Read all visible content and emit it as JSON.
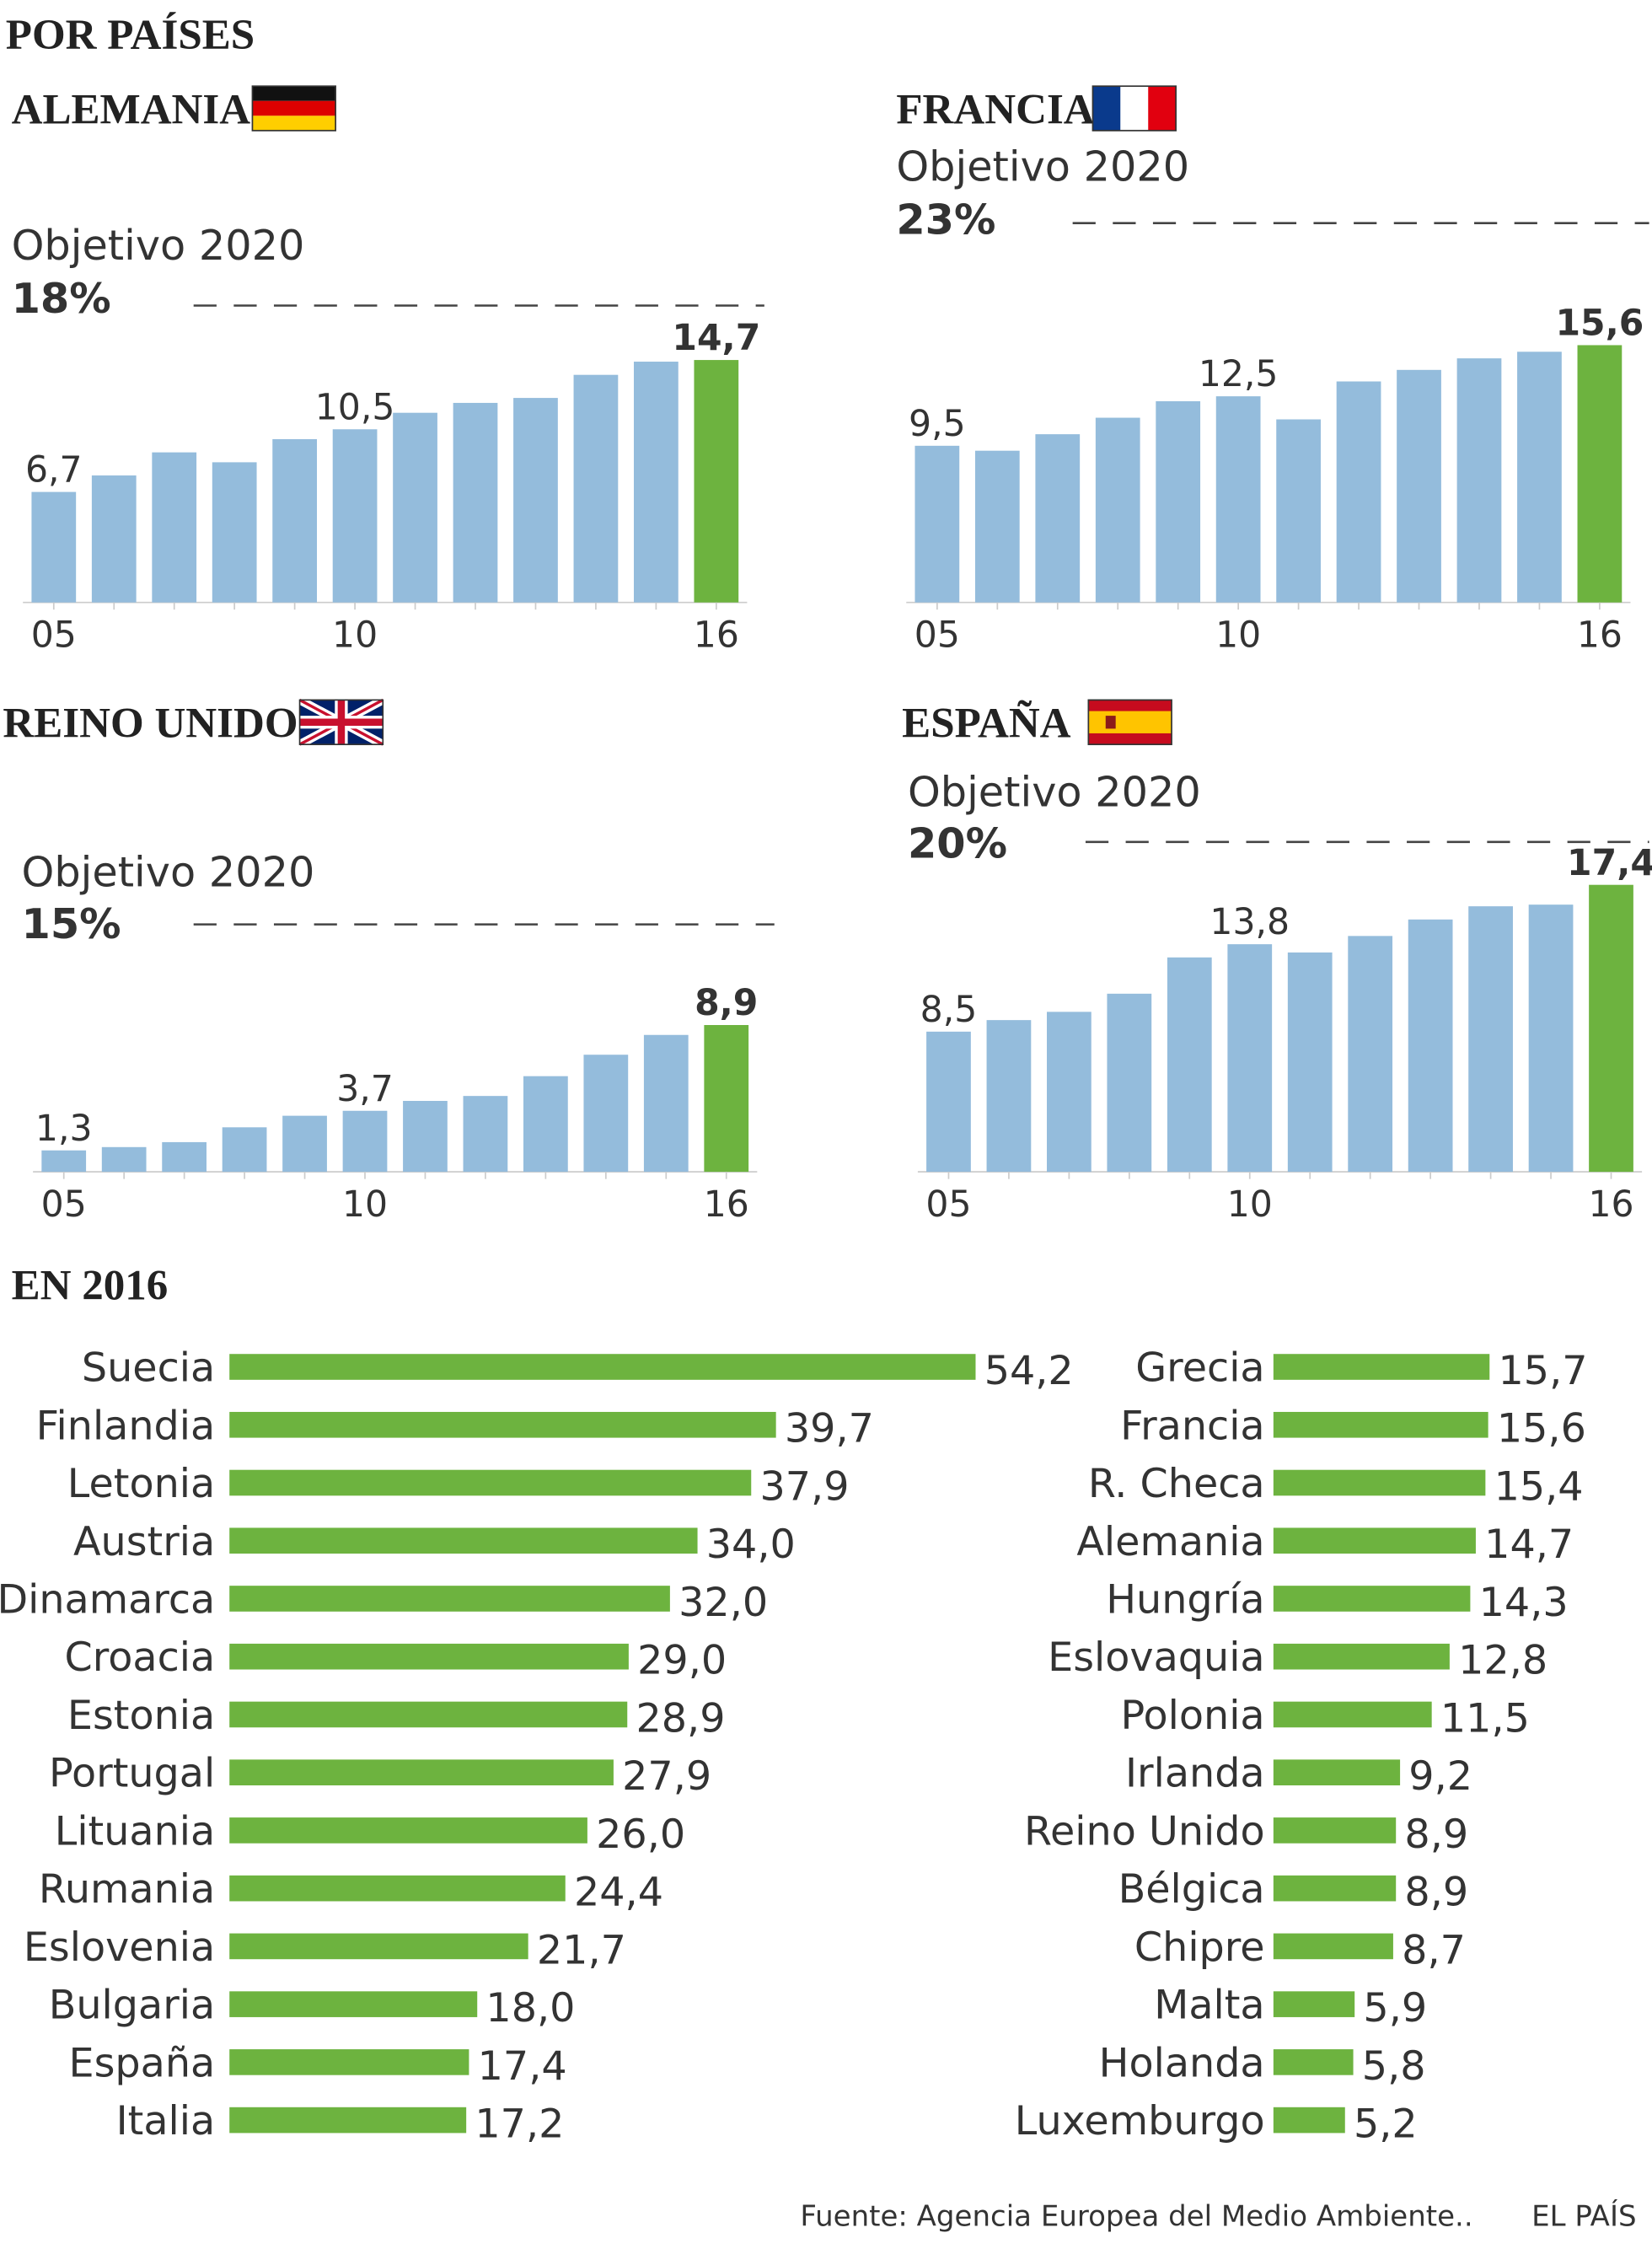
{
  "header": "POR PAÍSES",
  "chart_data": [
    {
      "type": "bar",
      "title": "ALEMANIA",
      "categories": [
        "05",
        null,
        null,
        null,
        null,
        "10",
        null,
        null,
        null,
        null,
        null,
        "16"
      ],
      "values": [
        6.7,
        7.7,
        9.1,
        8.5,
        9.9,
        10.5,
        11.5,
        12.1,
        12.4,
        13.8,
        14.6,
        14.7
      ],
      "value_labels": [
        "6,7",
        null,
        null,
        null,
        null,
        "10,5",
        null,
        null,
        null,
        null,
        null,
        "14,7"
      ],
      "target_label": "Objetivo 2020",
      "target": 18,
      "target_value_label": "18%",
      "color": "#94bcdc",
      "highlight_color": "#6db33f"
    },
    {
      "type": "bar",
      "title": "FRANCIA",
      "categories": [
        "05",
        null,
        null,
        null,
        null,
        "10",
        null,
        null,
        null,
        null,
        null,
        "16"
      ],
      "values": [
        9.5,
        9.2,
        10.2,
        11.2,
        12.2,
        12.5,
        11.1,
        13.4,
        14.1,
        14.8,
        15.2,
        15.6
      ],
      "value_labels": [
        "9,5",
        null,
        null,
        null,
        null,
        "12,5",
        null,
        null,
        null,
        null,
        null,
        "15,6"
      ],
      "target_label": "Objetivo 2020",
      "target": 23,
      "target_value_label": "23%",
      "color": "#94bcdc",
      "highlight_color": "#6db33f"
    },
    {
      "type": "bar",
      "title": "REINO UNIDO",
      "categories": [
        "05",
        null,
        null,
        null,
        null,
        "10",
        null,
        null,
        null,
        null,
        null,
        "16"
      ],
      "values": [
        1.3,
        1.5,
        1.8,
        2.7,
        3.4,
        3.7,
        4.3,
        4.6,
        5.8,
        7.1,
        8.3,
        8.9
      ],
      "value_labels": [
        "1,3",
        null,
        null,
        null,
        null,
        "3,7",
        null,
        null,
        null,
        null,
        null,
        "8,9"
      ],
      "target_label": "Objetivo 2020",
      "target": 15,
      "target_value_label": "15%",
      "color": "#94bcdc",
      "highlight_color": "#6db33f"
    },
    {
      "type": "bar",
      "title": "ESPAÑA",
      "categories": [
        "05",
        null,
        null,
        null,
        null,
        "10",
        null,
        null,
        null,
        null,
        null,
        "16"
      ],
      "values": [
        8.5,
        9.2,
        9.7,
        10.8,
        13.0,
        13.8,
        13.3,
        14.3,
        15.3,
        16.1,
        16.2,
        17.4
      ],
      "value_labels": [
        "8,5",
        null,
        null,
        null,
        null,
        "13,8",
        null,
        null,
        null,
        null,
        null,
        "17,4"
      ],
      "target_label": "Objetivo 2020",
      "target": 20,
      "target_value_label": "20%",
      "color": "#94bcdc",
      "highlight_color": "#6db33f"
    },
    {
      "type": "hbar",
      "title": "EN 2016",
      "categories": [
        "Suecia",
        "Finlandia",
        "Letonia",
        "Austria",
        "Dinamarca",
        "Croacia",
        "Estonia",
        "Portugal",
        "Lituania",
        "Rumania",
        "Eslovenia",
        "Bulgaria",
        "España",
        "Italia",
        "Grecia",
        "Francia",
        "R. Checa",
        "Alemania",
        "Hungría",
        "Eslovaquia",
        "Polonia",
        "Irlanda",
        "Reino Unido",
        "Bélgica",
        "Chipre",
        "Malta",
        "Holanda",
        "Luxemburgo"
      ],
      "values": [
        54.2,
        39.7,
        37.9,
        34.0,
        32.0,
        29.0,
        28.9,
        27.9,
        26.0,
        24.4,
        21.7,
        18.0,
        17.4,
        17.2,
        15.7,
        15.6,
        15.4,
        14.7,
        14.3,
        12.8,
        11.5,
        9.2,
        8.9,
        8.9,
        8.7,
        5.9,
        5.8,
        5.2
      ],
      "value_labels": [
        "54,2",
        "39,7",
        "37,9",
        "34,0",
        "32,0",
        "29,0",
        "28,9",
        "27,9",
        "26,0",
        "24,4",
        "21,7",
        "18,0",
        "17,4",
        "17,2",
        "15,7",
        "15,6",
        "15,4",
        "14,7",
        "14,3",
        "12,8",
        "11,5",
        "9,2",
        "8,9",
        "8,9",
        "8,7",
        "5,9",
        "5,8",
        "5,2"
      ],
      "color": "#6db33f"
    }
  ],
  "footer": {
    "source": "Fuente: Agencia Europea del Medio Ambiente..",
    "brand": "EL PAÍS"
  }
}
